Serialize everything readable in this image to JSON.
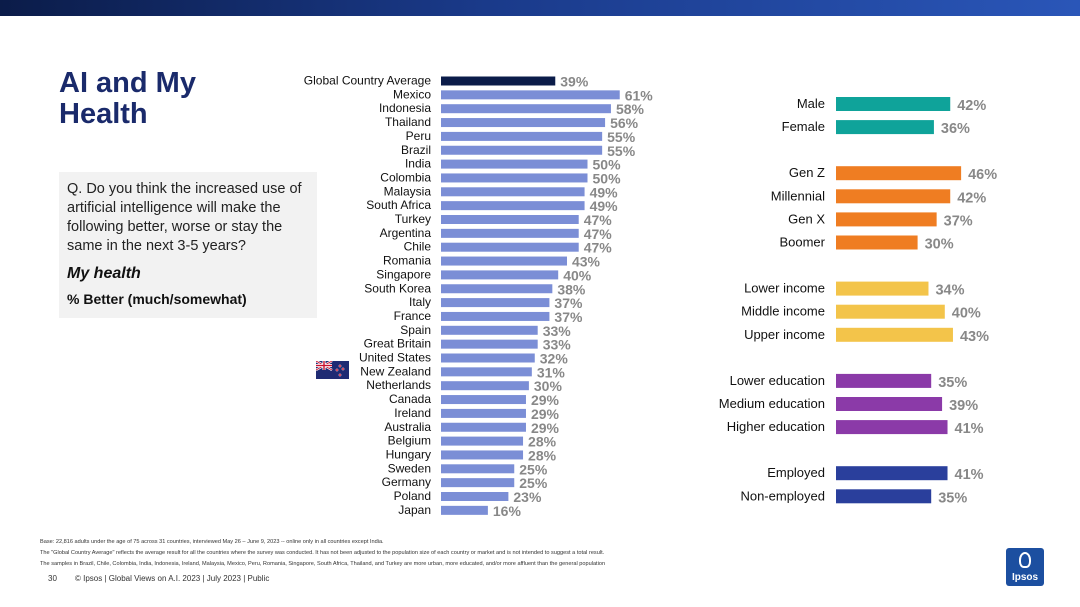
{
  "header": {
    "title_line1": "AI and My",
    "title_line2": "Health"
  },
  "question": {
    "text": "Q. Do you think the increased use of artificial intelligence will make the following better, worse or stay the same in the next 3-5 years?",
    "subject": "My health",
    "measure": "% Better (much/somewhat)"
  },
  "colors": {
    "global": "#0b1c49",
    "country": "#7b8ed6",
    "gender": "#0fa39a",
    "generation": "#ef7d22",
    "income": "#f3c44a",
    "education": "#8b3aa8",
    "employment": "#2a3f9c",
    "value_text": "#888888"
  },
  "chart_data": [
    {
      "type": "bar",
      "orientation": "horizontal",
      "title": "My health — % Better (much/somewhat) by country",
      "categories": [
        "Global Country Average",
        "Mexico",
        "Indonesia",
        "Thailand",
        "Peru",
        "Brazil",
        "India",
        "Colombia",
        "Malaysia",
        "South Africa",
        "Turkey",
        "Argentina",
        "Chile",
        "Romania",
        "Singapore",
        "South Korea",
        "Italy",
        "France",
        "Spain",
        "Great Britain",
        "United States",
        "New Zealand",
        "Netherlands",
        "Canada",
        "Ireland",
        "Australia",
        "Belgium",
        "Hungary",
        "Sweden",
        "Germany",
        "Poland",
        "Japan"
      ],
      "values": [
        39,
        61,
        58,
        56,
        55,
        55,
        50,
        50,
        49,
        49,
        47,
        47,
        47,
        43,
        40,
        38,
        37,
        37,
        33,
        33,
        32,
        31,
        30,
        29,
        29,
        29,
        28,
        28,
        25,
        25,
        23,
        16
      ],
      "labels": [
        "39%",
        "61%",
        "58%",
        "56%",
        "55%",
        "55%",
        "50%",
        "50%",
        "49%",
        "49%",
        "47%",
        "47%",
        "47%",
        "43%",
        "40%",
        "38%",
        "37%",
        "37%",
        "33%",
        "33%",
        "32%",
        "31%",
        "30%",
        "29%",
        "29%",
        "29%",
        "28%",
        "28%",
        "25%",
        "25%",
        "23%",
        "16%"
      ],
      "highlight": "Global Country Average",
      "unit": "%"
    },
    {
      "type": "bar",
      "orientation": "horizontal",
      "title": "My health — % Better (much/somewhat) by demographic",
      "groups": [
        {
          "name": "gender",
          "categories": [
            "Male",
            "Female"
          ],
          "values": [
            42,
            36
          ],
          "labels": [
            "42%",
            "36%"
          ]
        },
        {
          "name": "generation",
          "categories": [
            "Gen Z",
            "Millennial",
            "Gen X",
            "Boomer"
          ],
          "values": [
            46,
            42,
            37,
            30
          ],
          "labels": [
            "46%",
            "42%",
            "37%",
            "30%"
          ]
        },
        {
          "name": "income",
          "categories": [
            "Lower income",
            "Middle income",
            "Upper income"
          ],
          "values": [
            34,
            40,
            43
          ],
          "labels": [
            "34%",
            "40%",
            "43%"
          ]
        },
        {
          "name": "education",
          "categories": [
            "Lower education",
            "Medium education",
            "Higher education"
          ],
          "values": [
            35,
            39,
            41
          ],
          "labels": [
            "35%",
            "39%",
            "41%"
          ]
        },
        {
          "name": "employment",
          "categories": [
            "Employed",
            "Non-employed"
          ],
          "values": [
            41,
            35
          ],
          "labels": [
            "41%",
            "35%"
          ]
        }
      ],
      "unit": "%"
    }
  ],
  "footnotes": {
    "base": "Base: 22,816 adults under the age of 75 across 31 countries, interviewed May 26 – June 9, 2023 -- online only in all countries except India.",
    "gca": "The \"Global Country Average\" reflects the average result for all the countries where the survey was conducted. It has not been adjusted to the population size of each country or market and is not intended to suggest a total result.",
    "samples": "The samples in Brazil, Chile, Colombia, India, Indonesia, Ireland, Malaysia, Mexico, Peru, Romania, Singapore, South Africa, Thailand, and Turkey are more urban, more educated, and/or more affluent than the general population"
  },
  "footer": {
    "page": "30",
    "copyright": "© Ipsos | Global Views on A.I. 2023 | July 2023 | Public",
    "logo_text": "Ipsos"
  }
}
